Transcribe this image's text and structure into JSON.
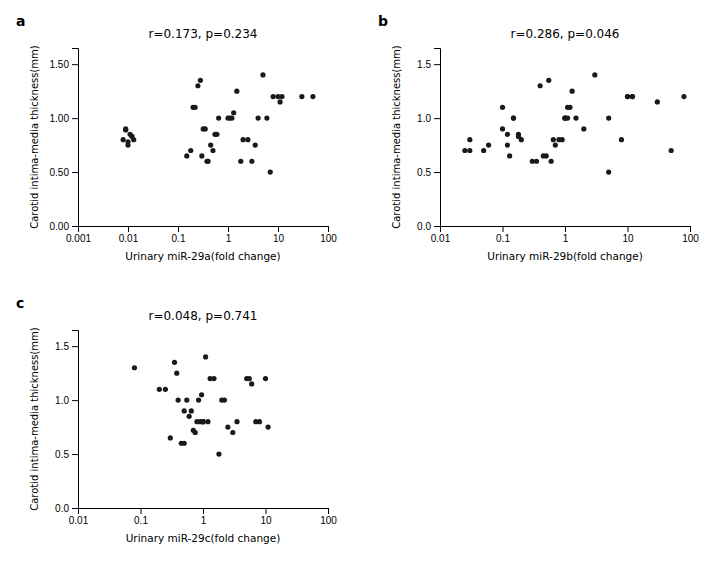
{
  "chart_data": [
    {
      "type": "scatter",
      "title": "r=0.173, p=0.234",
      "annotations": [
        "a"
      ],
      "xlabel": "Urinary miR-29a(fold change)",
      "ylabel": "Carotid intima-media thickness(mm)",
      "log": "x",
      "grid": false,
      "color": "#1a1a1a",
      "xlim": [
        0.001,
        100
      ],
      "xticks": [
        0.001,
        0.01,
        0.1,
        1,
        10,
        100
      ],
      "ylim": [
        0.0,
        1.65
      ],
      "yticks": [
        {
          "value": 0.0,
          "label": "0.00"
        },
        {
          "value": 0.5,
          "label": "0.50"
        },
        {
          "value": 1.0,
          "label": "1.00"
        },
        {
          "value": 1.5,
          "label": "1.50"
        }
      ],
      "x": [
        0.008,
        0.009,
        0.009,
        0.01,
        0.01,
        0.011,
        0.012,
        0.013,
        0.15,
        0.18,
        0.2,
        0.22,
        0.25,
        0.28,
        0.3,
        0.32,
        0.35,
        0.38,
        0.4,
        0.45,
        0.5,
        0.55,
        0.6,
        0.65,
        1.0,
        1.1,
        1.2,
        1.3,
        1.5,
        1.8,
        2.0,
        2.5,
        3.0,
        3.5,
        4.0,
        5.0,
        6.0,
        7.0,
        8.0,
        10.0,
        11.0,
        12.0,
        30.0,
        50.0
      ],
      "values": [
        0.8,
        0.89,
        0.9,
        0.75,
        0.78,
        0.85,
        0.83,
        0.8,
        0.65,
        0.7,
        1.1,
        1.1,
        1.3,
        1.35,
        0.65,
        0.9,
        0.9,
        0.6,
        0.6,
        0.75,
        0.7,
        0.85,
        0.85,
        1.0,
        1.0,
        1.0,
        1.0,
        1.05,
        1.25,
        0.6,
        0.8,
        0.8,
        0.6,
        0.75,
        1.0,
        1.4,
        1.0,
        0.5,
        1.2,
        1.2,
        1.15,
        1.2,
        1.2,
        1.2
      ]
    },
    {
      "type": "scatter",
      "title": "r=0.286, p=0.046",
      "annotations": [
        "b"
      ],
      "xlabel": "Urinary miR-29b(fold change)",
      "ylabel": "Carotid intima-media thickness(mm)",
      "log": "x",
      "grid": false,
      "color": "#1a1a1a",
      "xlim": [
        0.01,
        100
      ],
      "xticks": [
        0.01,
        0.1,
        1,
        10,
        100
      ],
      "ylim": [
        0.0,
        1.65
      ],
      "yticks": [
        {
          "value": 0.0,
          "label": "0.0"
        },
        0.5,
        {
          "value": 1.0,
          "label": "1.0"
        },
        1.5
      ],
      "x": [
        0.025,
        0.03,
        0.03,
        0.05,
        0.06,
        0.1,
        0.1,
        0.12,
        0.12,
        0.13,
        0.15,
        0.15,
        0.18,
        0.18,
        0.2,
        0.3,
        0.35,
        0.4,
        0.45,
        0.5,
        0.55,
        0.6,
        0.65,
        0.7,
        0.8,
        0.9,
        1.0,
        1.0,
        1.0,
        1.1,
        1.1,
        1.2,
        1.3,
        1.5,
        2.0,
        3.0,
        5.0,
        5.0,
        8.0,
        10.0,
        10.0,
        12.0,
        12.0,
        30.0,
        50.0,
        80.0
      ],
      "values": [
        0.7,
        0.7,
        0.8,
        0.7,
        0.75,
        1.1,
        0.9,
        0.85,
        0.75,
        0.65,
        1.0,
        1.0,
        0.85,
        0.83,
        0.8,
        0.6,
        0.6,
        1.3,
        0.65,
        0.65,
        1.35,
        0.6,
        0.8,
        0.75,
        0.8,
        0.8,
        1.0,
        1.0,
        1.0,
        1.0,
        1.1,
        1.1,
        1.25,
        1.0,
        0.9,
        1.4,
        0.5,
        1.0,
        0.8,
        1.2,
        1.2,
        1.2,
        1.2,
        1.15,
        0.7,
        1.2
      ]
    },
    {
      "type": "scatter",
      "title": "r=0.048, p=0.741",
      "annotations": [
        "c"
      ],
      "xlabel": "Urinary miR-29c(fold change)",
      "ylabel": "Carotid intima-media thickness(mm)",
      "log": "x",
      "grid": false,
      "color": "#1a1a1a",
      "xlim": [
        0.01,
        100
      ],
      "xticks": [
        0.01,
        0.1,
        1,
        10,
        100
      ],
      "ylim": [
        0.0,
        1.65
      ],
      "yticks": [
        {
          "value": 0.0,
          "label": "0.0"
        },
        0.5,
        {
          "value": 1.0,
          "label": "1.0"
        },
        1.5
      ],
      "x": [
        0.08,
        0.2,
        0.25,
        0.3,
        0.35,
        0.38,
        0.4,
        0.45,
        0.5,
        0.5,
        0.55,
        0.6,
        0.65,
        0.7,
        0.75,
        0.8,
        0.85,
        0.9,
        0.95,
        1.0,
        1.0,
        1.0,
        1.1,
        1.2,
        1.3,
        1.5,
        1.8,
        2.0,
        2.2,
        2.5,
        3.0,
        3.5,
        5.0,
        5.5,
        6.0,
        7.0,
        8.0,
        10.0,
        11.0
      ],
      "values": [
        1.3,
        1.1,
        1.1,
        0.65,
        1.35,
        1.25,
        1.0,
        0.6,
        0.6,
        0.9,
        1.0,
        0.85,
        0.9,
        0.72,
        0.7,
        0.8,
        1.0,
        0.8,
        1.05,
        0.8,
        0.8,
        0.8,
        1.4,
        0.8,
        1.2,
        1.2,
        0.5,
        1.0,
        1.0,
        0.75,
        0.7,
        0.8,
        1.2,
        1.2,
        1.15,
        0.8,
        0.8,
        1.2,
        0.75
      ]
    }
  ]
}
